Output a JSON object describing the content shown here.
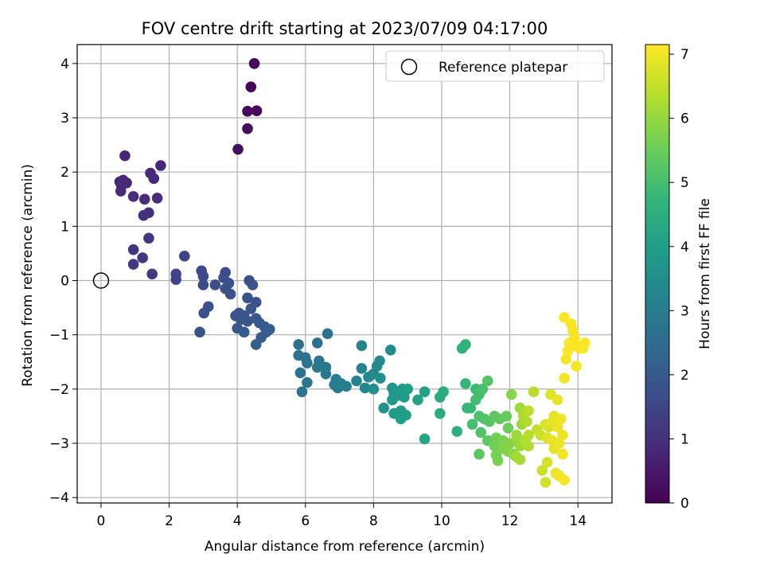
{
  "chart_data": {
    "type": "scatter",
    "title": "FOV centre drift starting at 2023/07/09 04:17:00",
    "xlabel": "Angular distance from reference (arcmin)",
    "ylabel": "Rotation from reference (arcmin)",
    "xlim": [
      -0.7,
      15.0
    ],
    "ylim": [
      -4.1,
      4.35
    ],
    "xticks": [
      0,
      2,
      4,
      6,
      8,
      10,
      12,
      14
    ],
    "yticks": [
      -4,
      -3,
      -2,
      -1,
      0,
      1,
      2,
      3,
      4
    ],
    "grid": true,
    "legend": {
      "position": "top-right",
      "entries": [
        "Reference platepar"
      ]
    },
    "reference_point": {
      "x": 0,
      "y": 0
    },
    "colorbar": {
      "label": "Hours from first FF file",
      "range": [
        0,
        7.15
      ],
      "ticks": [
        0,
        1,
        2,
        3,
        4,
        5,
        6,
        7
      ],
      "colormap": [
        "#440154",
        "#482878",
        "#3e4989",
        "#31688e",
        "#26828e",
        "#1f9e89",
        "#35b779",
        "#6ece58",
        "#b5de2b",
        "#fde725"
      ]
    },
    "series": [
      {
        "points": [
          [
            4.5,
            4.0,
            0.1
          ],
          [
            4.4,
            3.57,
            0.12
          ],
          [
            4.3,
            3.12,
            0.15
          ],
          [
            4.57,
            3.13,
            0.15
          ],
          [
            4.3,
            2.8,
            0.2
          ],
          [
            4.02,
            2.42,
            0.25
          ],
          [
            0.7,
            2.3,
            0.75
          ],
          [
            1.75,
            2.12,
            0.8
          ],
          [
            1.45,
            1.98,
            0.8
          ],
          [
            1.55,
            1.88,
            0.85
          ],
          [
            0.55,
            1.82,
            0.8
          ],
          [
            0.65,
            1.85,
            0.82
          ],
          [
            0.75,
            1.8,
            0.82
          ],
          [
            0.6,
            1.75,
            0.85
          ],
          [
            0.58,
            1.65,
            0.85
          ],
          [
            0.95,
            1.55,
            0.9
          ],
          [
            1.65,
            1.52,
            0.95
          ],
          [
            1.28,
            1.5,
            0.95
          ],
          [
            1.4,
            1.25,
            1.0
          ],
          [
            1.25,
            1.2,
            1.0
          ],
          [
            1.4,
            0.78,
            1.1
          ],
          [
            0.95,
            0.57,
            1.15
          ],
          [
            1.22,
            0.42,
            1.2
          ],
          [
            0.95,
            0.3,
            1.2
          ],
          [
            1.5,
            0.12,
            1.25
          ],
          [
            2.45,
            0.45,
            1.45
          ],
          [
            2.2,
            0.12,
            1.5
          ],
          [
            2.2,
            0.02,
            1.5
          ],
          [
            2.95,
            0.18,
            1.6
          ],
          [
            3.0,
            0.08,
            1.65
          ],
          [
            3.0,
            -0.08,
            1.65
          ],
          [
            3.35,
            -0.08,
            1.7
          ],
          [
            3.65,
            0.15,
            1.7
          ],
          [
            3.6,
            0.05,
            1.75
          ],
          [
            3.75,
            -0.05,
            1.75
          ],
          [
            3.65,
            -0.15,
            1.75
          ],
          [
            3.8,
            -0.25,
            1.8
          ],
          [
            3.15,
            -0.48,
            1.8
          ],
          [
            3.02,
            -0.6,
            1.8
          ],
          [
            2.9,
            -0.95,
            1.85
          ],
          [
            4.35,
            0.0,
            1.8
          ],
          [
            4.45,
            -0.08,
            1.8
          ],
          [
            4.3,
            -0.32,
            1.85
          ],
          [
            4.55,
            -0.4,
            1.85
          ],
          [
            4.4,
            -0.52,
            1.9
          ],
          [
            4.05,
            -0.6,
            1.9
          ],
          [
            4.2,
            -0.65,
            1.9
          ],
          [
            3.95,
            -0.65,
            1.9
          ],
          [
            4.1,
            -0.72,
            1.95
          ],
          [
            4.3,
            -0.75,
            1.95
          ],
          [
            4.55,
            -0.7,
            1.95
          ],
          [
            4.65,
            -0.78,
            2.0
          ],
          [
            4.8,
            -0.85,
            2.05
          ],
          [
            4.95,
            -0.9,
            2.1
          ],
          [
            4.0,
            -0.88,
            1.95
          ],
          [
            4.2,
            -0.95,
            2.0
          ],
          [
            4.85,
            -0.95,
            2.1
          ],
          [
            4.7,
            -1.05,
            2.1
          ],
          [
            4.55,
            -1.18,
            2.1
          ],
          [
            5.8,
            -1.18,
            2.6
          ],
          [
            6.35,
            -1.15,
            2.65
          ],
          [
            6.65,
            -0.98,
            2.7
          ],
          [
            5.8,
            -1.38,
            2.65
          ],
          [
            6.0,
            -1.42,
            2.7
          ],
          [
            6.05,
            -1.52,
            2.7
          ],
          [
            5.85,
            -1.7,
            2.75
          ],
          [
            6.05,
            -1.88,
            2.8
          ],
          [
            5.9,
            -2.05,
            2.8
          ],
          [
            6.4,
            -1.48,
            2.8
          ],
          [
            6.35,
            -1.6,
            2.85
          ],
          [
            6.6,
            -1.6,
            2.85
          ],
          [
            6.6,
            -1.72,
            2.9
          ],
          [
            6.9,
            -1.82,
            2.95
          ],
          [
            6.85,
            -1.92,
            3.0
          ],
          [
            6.95,
            -1.98,
            3.0
          ],
          [
            7.05,
            -1.9,
            3.05
          ],
          [
            7.2,
            -1.95,
            3.1
          ],
          [
            7.65,
            -1.2,
            3.2
          ],
          [
            7.65,
            -1.62,
            3.2
          ],
          [
            7.5,
            -1.85,
            3.25
          ],
          [
            7.85,
            -1.78,
            3.3
          ],
          [
            7.75,
            -1.98,
            3.3
          ],
          [
            8.0,
            -1.72,
            3.35
          ],
          [
            8.1,
            -1.58,
            3.35
          ],
          [
            8.18,
            -1.48,
            3.4
          ],
          [
            8.5,
            -1.28,
            3.45
          ],
          [
            8.0,
            -2.0,
            3.5
          ],
          [
            8.2,
            -1.8,
            3.55
          ],
          [
            8.3,
            -2.35,
            3.6
          ],
          [
            8.55,
            -1.98,
            3.7
          ],
          [
            8.6,
            -2.08,
            3.75
          ],
          [
            8.7,
            -2.12,
            3.8
          ],
          [
            8.55,
            -2.2,
            3.8
          ],
          [
            8.85,
            -2.0,
            3.85
          ],
          [
            8.9,
            -2.15,
            3.9
          ],
          [
            8.6,
            -2.45,
            3.9
          ],
          [
            8.8,
            -2.4,
            3.95
          ],
          [
            8.95,
            -2.48,
            4.0
          ],
          [
            8.8,
            -2.55,
            4.0
          ],
          [
            9.0,
            -2.0,
            4.05
          ],
          [
            9.3,
            -2.2,
            4.1
          ],
          [
            9.5,
            -2.05,
            4.1
          ],
          [
            9.5,
            -2.92,
            4.2
          ],
          [
            9.95,
            -2.15,
            4.35
          ],
          [
            10.05,
            -2.05,
            4.4
          ],
          [
            9.95,
            -2.45,
            4.4
          ],
          [
            10.45,
            -2.78,
            4.5
          ],
          [
            10.6,
            -1.25,
            4.55
          ],
          [
            10.7,
            -1.18,
            4.6
          ],
          [
            10.7,
            -1.9,
            4.7
          ],
          [
            10.75,
            -2.35,
            4.75
          ],
          [
            10.85,
            -2.35,
            4.8
          ],
          [
            11.0,
            -2.0,
            4.9
          ],
          [
            11.1,
            -2.1,
            4.95
          ],
          [
            11.0,
            -2.2,
            5.0
          ],
          [
            11.2,
            -2.0,
            5.05
          ],
          [
            10.9,
            -2.65,
            5.0
          ],
          [
            11.1,
            -2.5,
            5.1
          ],
          [
            11.25,
            -2.55,
            5.15
          ],
          [
            11.35,
            -1.85,
            5.2
          ],
          [
            11.15,
            -2.8,
            5.15
          ],
          [
            11.4,
            -2.6,
            5.25
          ],
          [
            11.55,
            -2.5,
            5.3
          ],
          [
            11.1,
            -3.2,
            5.3
          ],
          [
            11.35,
            -2.95,
            5.35
          ],
          [
            11.7,
            -2.55,
            5.4
          ],
          [
            11.9,
            -2.5,
            5.45
          ],
          [
            11.95,
            -2.72,
            5.5
          ],
          [
            11.6,
            -2.9,
            5.55
          ],
          [
            11.55,
            -3.05,
            5.6
          ],
          [
            11.6,
            -3.22,
            5.65
          ],
          [
            11.65,
            -3.32,
            5.65
          ],
          [
            11.8,
            -2.95,
            5.7
          ],
          [
            11.8,
            -3.1,
            5.75
          ],
          [
            12.0,
            -3.0,
            5.8
          ],
          [
            12.05,
            -2.1,
            5.85
          ],
          [
            11.95,
            -3.15,
            5.85
          ],
          [
            12.1,
            -3.2,
            5.9
          ],
          [
            12.2,
            -2.95,
            6.0
          ],
          [
            12.2,
            -2.85,
            6.05
          ],
          [
            12.3,
            -2.35,
            6.1
          ],
          [
            12.3,
            -3.05,
            6.1
          ],
          [
            12.35,
            -2.65,
            6.1
          ],
          [
            12.2,
            -3.25,
            6.15
          ],
          [
            12.3,
            -3.3,
            6.2
          ],
          [
            12.4,
            -2.5,
            6.2
          ],
          [
            12.4,
            -2.45,
            6.25
          ],
          [
            12.5,
            -2.6,
            6.3
          ],
          [
            12.45,
            -2.95,
            6.3
          ],
          [
            12.55,
            -3.05,
            6.3
          ],
          [
            12.55,
            -2.85,
            6.35
          ],
          [
            12.7,
            -2.05,
            6.4
          ],
          [
            12.55,
            -2.4,
            6.4
          ],
          [
            12.8,
            -2.75,
            6.5
          ],
          [
            12.9,
            -2.85,
            6.6
          ],
          [
            12.95,
            -3.5,
            6.6
          ],
          [
            13.05,
            -3.72,
            6.65
          ],
          [
            13.1,
            -3.35,
            6.7
          ],
          [
            13.05,
            -2.65,
            6.75
          ],
          [
            13.15,
            -2.7,
            6.75
          ],
          [
            13.1,
            -2.9,
            6.8
          ],
          [
            13.2,
            -2.1,
            6.8
          ],
          [
            13.25,
            -2.6,
            6.85
          ],
          [
            13.3,
            -2.5,
            6.85
          ],
          [
            13.25,
            -2.95,
            6.9
          ],
          [
            13.3,
            -3.1,
            6.9
          ],
          [
            13.4,
            -2.2,
            6.9
          ],
          [
            13.4,
            -2.7,
            6.95
          ],
          [
            13.45,
            -3.0,
            6.95
          ],
          [
            13.35,
            -3.55,
            6.95
          ],
          [
            13.45,
            -3.6,
            7.0
          ],
          [
            13.5,
            -2.55,
            7.0
          ],
          [
            13.55,
            -2.85,
            7.0
          ],
          [
            13.55,
            -3.2,
            7.0
          ],
          [
            13.6,
            -3.68,
            7.05
          ],
          [
            13.6,
            -1.8,
            7.05
          ],
          [
            13.65,
            -1.45,
            7.05
          ],
          [
            13.7,
            -1.3,
            7.1
          ],
          [
            13.6,
            -0.68,
            7.1
          ],
          [
            13.8,
            -0.8,
            7.1
          ],
          [
            13.85,
            -0.92,
            7.1
          ],
          [
            13.85,
            -1.2,
            7.1
          ],
          [
            13.75,
            -1.15,
            7.1
          ],
          [
            13.9,
            -1.05,
            7.1
          ],
          [
            13.95,
            -1.2,
            7.1
          ],
          [
            13.95,
            -1.58,
            7.1
          ],
          [
            14.05,
            -1.25,
            7.1
          ],
          [
            14.15,
            -1.2,
            7.12
          ],
          [
            14.2,
            -1.15,
            7.12
          ],
          [
            14.15,
            -1.25,
            7.12
          ]
        ]
      }
    ]
  }
}
